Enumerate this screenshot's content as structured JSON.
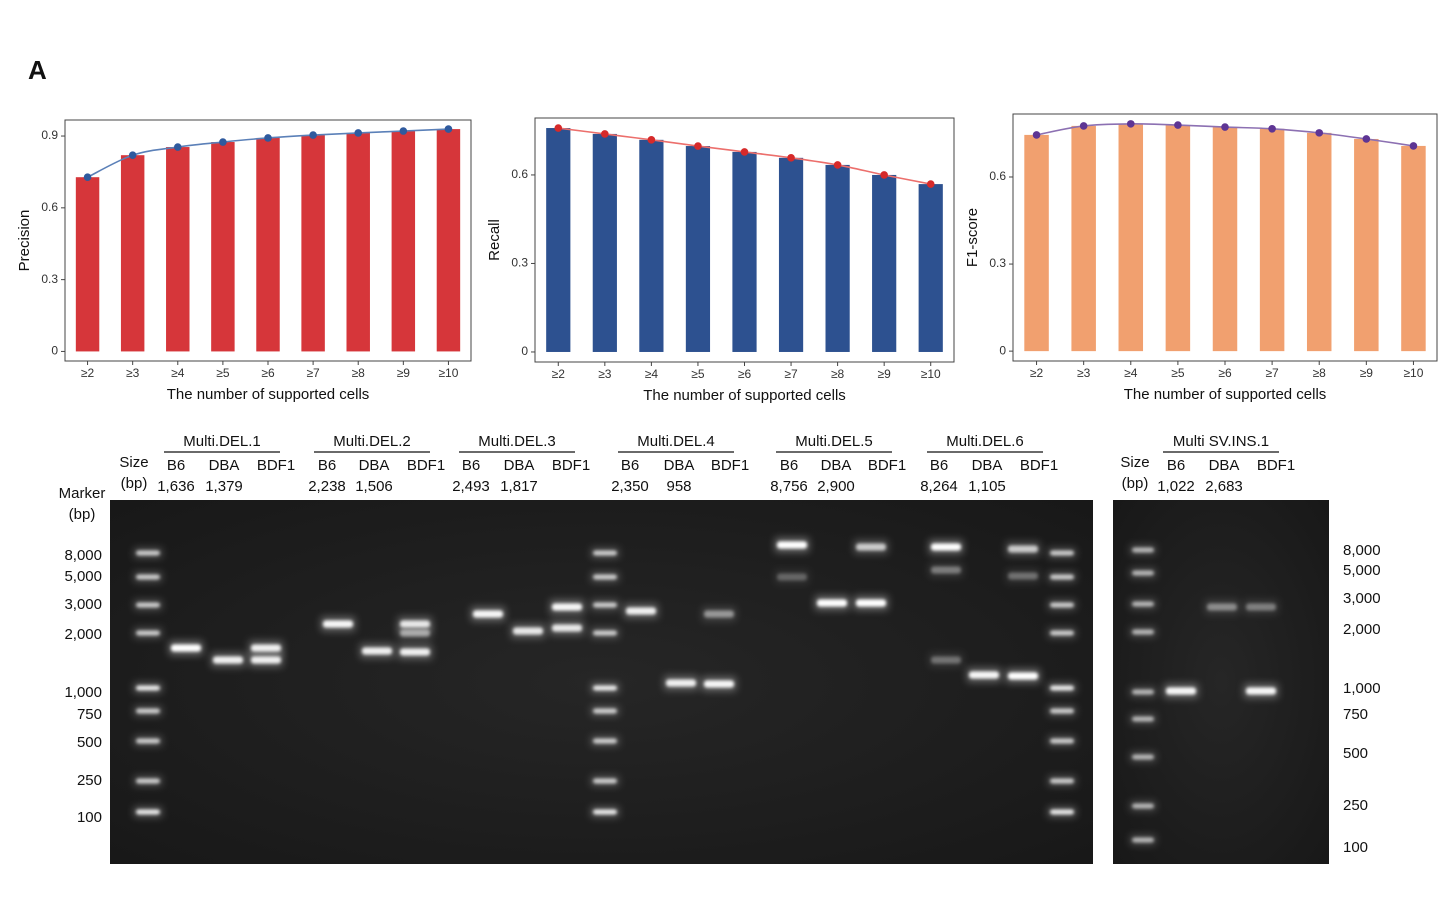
{
  "panel_label": "A",
  "chart_data": [
    {
      "type": "bar",
      "ylabel": "Precision",
      "xlabel": "The number of supported cells",
      "categories": [
        "≥2",
        "≥3",
        "≥4",
        "≥5",
        "≥6",
        "≥7",
        "≥8",
        "≥9",
        "≥10"
      ],
      "values": [
        0.728,
        0.82,
        0.854,
        0.875,
        0.892,
        0.904,
        0.913,
        0.921,
        0.929
      ],
      "color": "#d6363a",
      "line_color": "#5b80b8",
      "marker_color": "#2f5a9e",
      "ylim": [
        -0.04,
        0.967
      ],
      "yticks": [
        0,
        0.3,
        0.6,
        0.9
      ]
    },
    {
      "type": "bar",
      "ylabel": "Recall",
      "xlabel": "The number of supported cells",
      "categories": [
        "≥2",
        "≥3",
        "≥4",
        "≥5",
        "≥6",
        "≥7",
        "≥8",
        "≥9",
        "≥10"
      ],
      "values": [
        0.759,
        0.739,
        0.719,
        0.698,
        0.678,
        0.658,
        0.634,
        0.6,
        0.569
      ],
      "color": "#2d5190",
      "line_color": "#ec6f6c",
      "marker_color": "#d62a2a",
      "ylim": [
        -0.034,
        0.793
      ],
      "yticks": [
        0,
        0.3,
        0.6
      ]
    },
    {
      "type": "bar",
      "ylabel": "F1-score",
      "xlabel": "The number of supported cells",
      "categories": [
        "≥2",
        "≥3",
        "≥4",
        "≥5",
        "≥6",
        "≥7",
        "≥8",
        "≥9",
        "≥10"
      ],
      "values": [
        0.745,
        0.776,
        0.783,
        0.779,
        0.772,
        0.766,
        0.752,
        0.731,
        0.707
      ],
      "color": "#f1a06f",
      "line_color": "#8c70b2",
      "marker_color": "#5e3594",
      "ylim": [
        -0.034,
        0.817
      ],
      "yticks": [
        0,
        0.3,
        0.6
      ]
    }
  ],
  "gel": {
    "marker_title": [
      "Marker",
      "(bp)"
    ],
    "size_title": [
      "Size",
      "(bp)"
    ],
    "groups": [
      {
        "name": "Multi.DEL.1",
        "lanes": [
          "B6",
          "DBA",
          "BDF1"
        ],
        "sizes": [
          "1,636",
          "1,379"
        ]
      },
      {
        "name": "Multi.DEL.2",
        "lanes": [
          "B6",
          "DBA",
          "BDF1"
        ],
        "sizes": [
          "2,238",
          "1,506"
        ]
      },
      {
        "name": "Multi.DEL.3",
        "lanes": [
          "B6",
          "DBA",
          "BDF1"
        ],
        "sizes": [
          "2,493",
          "1,817"
        ]
      },
      {
        "name": "Multi.DEL.4",
        "lanes": [
          "B6",
          "DBA",
          "BDF1"
        ],
        "sizes": [
          "2,350",
          "958"
        ]
      },
      {
        "name": "Multi.DEL.5",
        "lanes": [
          "B6",
          "DBA",
          "BDF1"
        ],
        "sizes": [
          "8,756",
          "2,900"
        ]
      },
      {
        "name": "Multi.DEL.6",
        "lanes": [
          "B6",
          "DBA",
          "BDF1"
        ],
        "sizes": [
          "8,264",
          "1,105"
        ]
      },
      {
        "name": "Multi SV.INS.1",
        "lanes": [
          "B6",
          "DBA",
          "BDF1"
        ],
        "sizes": [
          "1,022",
          "2,683"
        ]
      }
    ],
    "ins_size_title": [
      "Size",
      "(bp)"
    ],
    "left_marker_labels": [
      "8,000",
      "5,000",
      "3,000",
      "2,000",
      "1,000",
      "750",
      "500",
      "250",
      "100"
    ],
    "right_marker_labels": [
      "8,000",
      "5,000",
      "3,000",
      "2,000",
      "1,000",
      "750",
      "500",
      "250",
      "100"
    ]
  }
}
